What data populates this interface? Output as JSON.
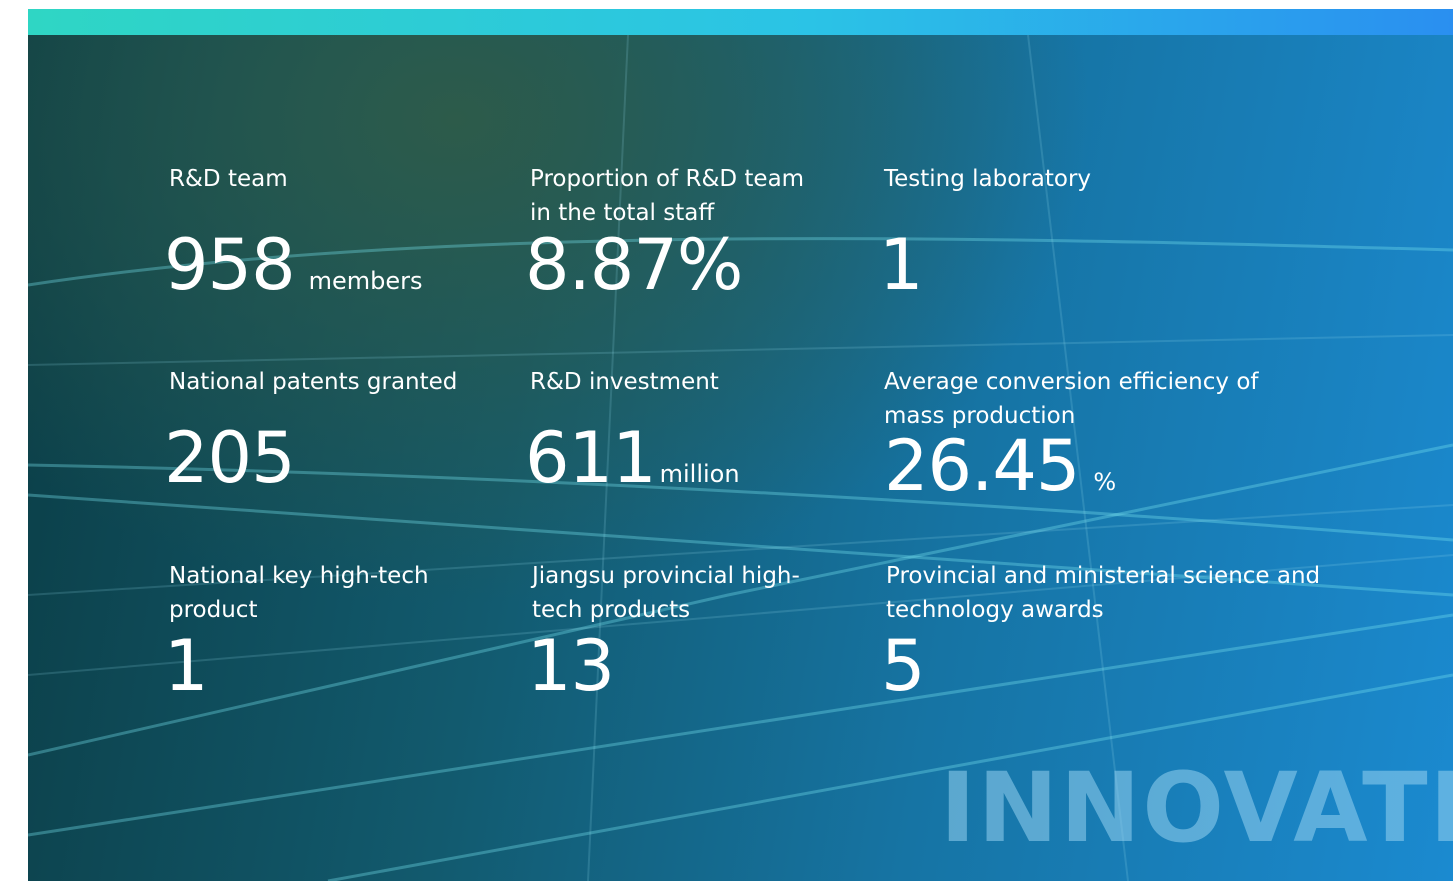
{
  "stats": [
    {
      "label": "R&D team",
      "value": "958",
      "unit": "members"
    },
    {
      "label": "Proportion of R&D team in the total staff",
      "value": "8.87%"
    },
    {
      "label": "Testing laboratory",
      "value": "1"
    },
    {
      "label": "National patents granted",
      "value": "205"
    },
    {
      "label": "R&D investment",
      "value": "611",
      "unit": "million"
    },
    {
      "label": "Average conversion efficiency of mass production",
      "value": "26.45",
      "unit": "%"
    },
    {
      "label": "National key high-tech product",
      "value": "1"
    },
    {
      "label": "Jiangsu provincial high-tech products",
      "value": "13"
    },
    {
      "label": "Provincial and ministerial science and technology awards",
      "value": "5"
    }
  ],
  "brand": "INNOVATE"
}
